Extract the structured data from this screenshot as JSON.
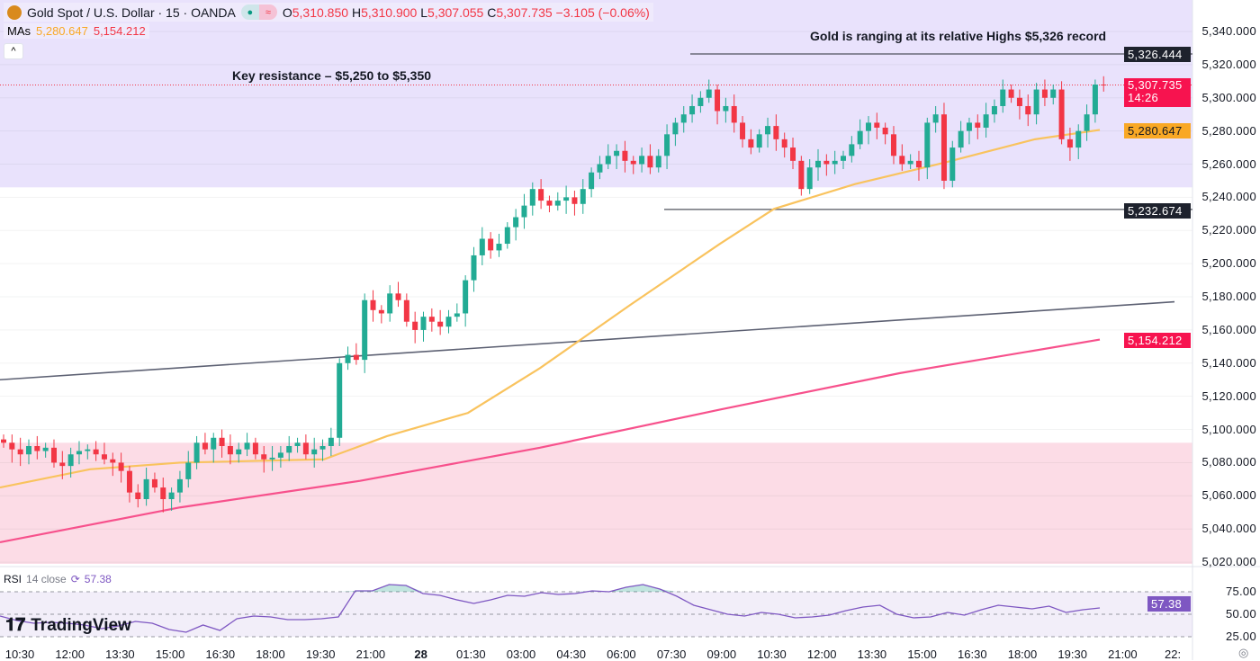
{
  "header": {
    "symbol": "Gold Spot / U.S. Dollar · 15 · OANDA",
    "o_label": "O",
    "o": "5,310.850",
    "h_label": "H",
    "h": "5,310.900",
    "l_label": "L",
    "l": "5,307.055",
    "c_label": "C",
    "c": "5,307.735",
    "change": "−3.105 (−0.06%)",
    "mas_label": "MAs",
    "ma1": "5,280.647",
    "ma2": "5,154.212",
    "collapse_icon": "chevron-up-icon"
  },
  "annotations": {
    "resistance": "Key resistance – $5,250 to $5,350",
    "highs": "Gold is ranging at its relative Highs $5,326 record"
  },
  "colors": {
    "up": "#22ab94",
    "down": "#f23645",
    "ma50": "#f9c35e",
    "ma200": "#f7518c",
    "resistance_zone": "#e9e2fc",
    "support_zone": "#fcdce6",
    "rsi": "#7e57c2"
  },
  "price_axis": [
    "5,340.000",
    "5,320.000",
    "5,300.000",
    "5,280.000",
    "5,260.000",
    "5,240.000",
    "5,220.000",
    "5,200.000",
    "5,180.000",
    "5,160.000",
    "5,140.000",
    "5,120.000",
    "5,100.000",
    "5,080.000",
    "5,060.000",
    "5,040.000",
    "5,020.000"
  ],
  "tags": {
    "high": "5,326.444",
    "last": "5,307.735",
    "countdown": "14:26",
    "ma50": "5,280.647",
    "low": "5,232.674",
    "ma200": "5,154.212",
    "rsi": "57.38"
  },
  "time_axis": [
    "10:30",
    "12:00",
    "13:30",
    "15:00",
    "16:30",
    "18:00",
    "19:30",
    "21:00",
    "28",
    "01:30",
    "03:00",
    "04:30",
    "06:00",
    "07:30",
    "09:00",
    "10:30",
    "12:00",
    "13:30",
    "15:00",
    "16:30",
    "18:00",
    "19:30",
    "21:00",
    "22:"
  ],
  "rsi": {
    "label": "RSI",
    "params": "14 close",
    "value": "57.38",
    "axis": [
      "75.00",
      "50.00",
      "25.00"
    ],
    "values": [
      48,
      43,
      40,
      41,
      40,
      38,
      34,
      37,
      42,
      40,
      33,
      30,
      38,
      32,
      45,
      48,
      47,
      44,
      44,
      45,
      47,
      76,
      76,
      83,
      82,
      73,
      71,
      66,
      62,
      66,
      71,
      70,
      74,
      72,
      73,
      76,
      75,
      80,
      83,
      78,
      70,
      60,
      55,
      50,
      48,
      52,
      50,
      46,
      47,
      49,
      54,
      58,
      60,
      50,
      46,
      47,
      52,
      49,
      55,
      60,
      58,
      56,
      59,
      52,
      55,
      57
    ]
  },
  "logo": "TradingView",
  "chart_data": {
    "type": "candlestick",
    "ylim": [
      5012,
      5360
    ],
    "close": [
      5092,
      5088,
      5085,
      5090,
      5087,
      5089,
      5080,
      5078,
      5085,
      5087,
      5088,
      5085,
      5082,
      5080,
      5075,
      5062,
      5058,
      5070,
      5065,
      5058,
      5062,
      5070,
      5080,
      5092,
      5088,
      5095,
      5090,
      5085,
      5088,
      5092,
      5085,
      5082,
      5083,
      5086,
      5090,
      5092,
      5085,
      5088,
      5090,
      5095,
      5140,
      5145,
      5142,
      5178,
      5172,
      5170,
      5182,
      5178,
      5165,
      5160,
      5168,
      5165,
      5162,
      5168,
      5170,
      5190,
      5205,
      5215,
      5208,
      5212,
      5222,
      5228,
      5235,
      5245,
      5238,
      5235,
      5238,
      5240,
      5236,
      5245,
      5255,
      5260,
      5265,
      5268,
      5262,
      5260,
      5265,
      5258,
      5265,
      5278,
      5285,
      5290,
      5295,
      5300,
      5305,
      5292,
      5295,
      5285,
      5275,
      5270,
      5278,
      5283,
      5275,
      5270,
      5262,
      5245,
      5258,
      5262,
      5260,
      5262,
      5265,
      5272,
      5280,
      5285,
      5282,
      5278,
      5265,
      5260,
      5262,
      5258,
      5285,
      5290,
      5250,
      5270,
      5280,
      5285,
      5282,
      5290,
      5295,
      5305,
      5300,
      5295,
      5290,
      5305,
      5300,
      5305,
      5275,
      5270,
      5280,
      5290,
      5308,
      5307.735
    ],
    "ma50": [
      [
        0,
        5065
      ],
      [
        100,
        5076
      ],
      [
        200,
        5080
      ],
      [
        360,
        5082
      ],
      [
        430,
        5096
      ],
      [
        520,
        5110
      ],
      [
        600,
        5137
      ],
      [
        700,
        5175
      ],
      [
        800,
        5212
      ],
      [
        860,
        5233
      ],
      [
        950,
        5248
      ],
      [
        1050,
        5261
      ],
      [
        1150,
        5275
      ],
      [
        1222,
        5280.647
      ]
    ],
    "ma200": [
      [
        0,
        5032
      ],
      [
        200,
        5053
      ],
      [
        400,
        5069
      ],
      [
        600,
        5089
      ],
      [
        800,
        5112
      ],
      [
        1000,
        5134
      ],
      [
        1222,
        5154.212
      ]
    ],
    "trendline": [
      [
        0,
        5130
      ],
      [
        1305,
        5177
      ]
    ],
    "resistance_zone": [
      5246,
      5360
    ],
    "support_zone": [
      5019,
      5092
    ],
    "levels": [
      5326.444,
      5232.674
    ],
    "last": 5307.735
  }
}
